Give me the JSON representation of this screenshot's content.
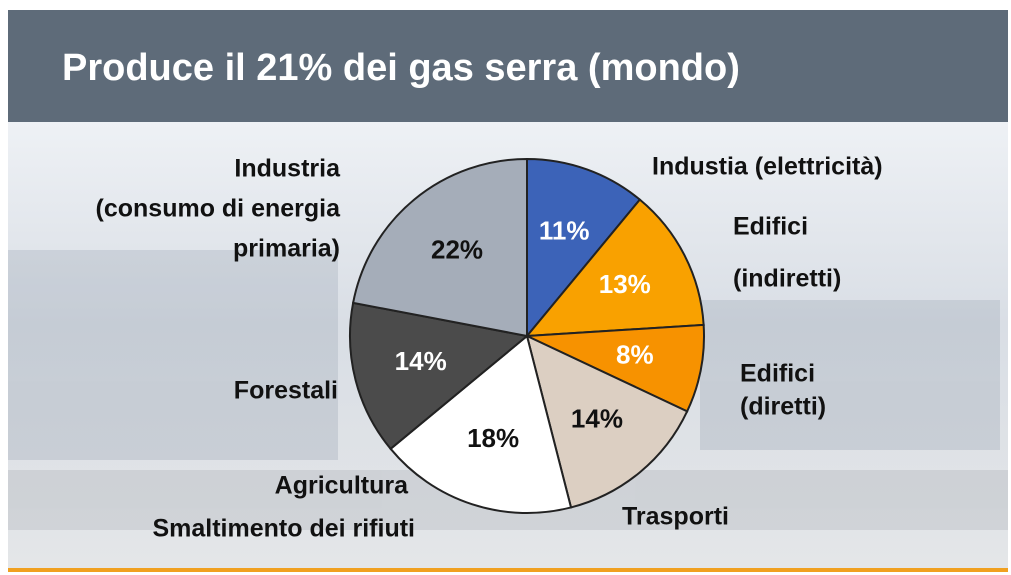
{
  "chart_data": {
    "type": "pie",
    "title": "Produce il 21% dei gas serra (mondo)",
    "categories": [
      [
        "Industia (elettricità)"
      ],
      [
        "Edifici",
        "(indiretti)"
      ],
      [
        "Edifici",
        "(diretti)"
      ],
      [
        "Trasporti"
      ],
      [
        "Agricultura",
        "Smaltimento dei rifiuti"
      ],
      [
        "Forestali"
      ],
      [
        "Industria",
        "(consumo di energia",
        "primaria)"
      ]
    ],
    "values": [
      11,
      13,
      8,
      14,
      18,
      14,
      22
    ],
    "value_labels": [
      "11%",
      "13%",
      "8%",
      "14%",
      "18%",
      "14%",
      "22%"
    ],
    "colors": [
      "#3c63b8",
      "#f9a100",
      "#f79200",
      "#dccfc2",
      "#ffffff",
      "#4b4b4b",
      "#a5adb9"
    ]
  }
}
